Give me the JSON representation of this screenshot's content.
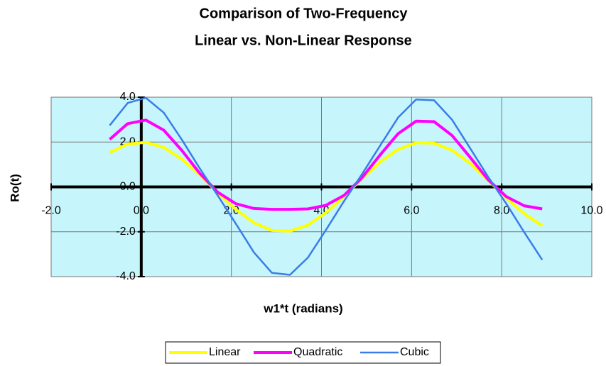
{
  "chart_data": {
    "type": "line",
    "title": [
      "Comparison of Two-Frequency",
      "Linear vs. Non-Linear Response"
    ],
    "x_label": "w1*t (radians)",
    "y_label": "Ro(t)",
    "x": [
      -0.7,
      -0.3,
      0.1,
      0.5,
      0.9,
      1.3,
      1.7,
      2.1,
      2.5,
      2.9,
      3.3,
      3.7,
      4.1,
      4.5,
      4.9,
      5.3,
      5.7,
      6.1,
      6.5,
      6.9,
      7.3,
      7.7,
      8.1,
      8.5,
      8.9
    ],
    "series": [
      {
        "name": "Linear",
        "color": "#ffff00",
        "values": [
          1.53,
          1.91,
          1.99,
          1.76,
          1.24,
          0.53,
          -0.26,
          -1.01,
          -1.6,
          -1.94,
          -1.97,
          -1.7,
          -1.15,
          -0.42,
          0.37,
          1.11,
          1.67,
          1.97,
          1.95,
          1.63,
          1.05,
          0.3,
          -0.49,
          -1.2,
          -1.73
        ]
      },
      {
        "name": "Quadratic",
        "color": "#ff00ff",
        "values": [
          2.12,
          2.82,
          2.98,
          2.53,
          1.63,
          0.6,
          -0.24,
          -0.75,
          -0.96,
          -1.0,
          -1.0,
          -0.98,
          -0.82,
          -0.38,
          0.41,
          1.42,
          2.37,
          2.93,
          2.91,
          2.29,
          1.32,
          0.32,
          -0.43,
          -0.84,
          -0.98
        ]
      },
      {
        "name": "Cubic",
        "color": "#3a7de8",
        "values": [
          2.74,
          3.74,
          3.97,
          3.31,
          2.11,
          0.82,
          -0.39,
          -1.64,
          -2.92,
          -3.83,
          -3.92,
          -3.15,
          -1.92,
          -0.64,
          0.57,
          1.83,
          3.09,
          3.9,
          3.86,
          2.99,
          1.72,
          0.45,
          -0.74,
          -2.02,
          -3.25
        ]
      }
    ],
    "xlim": [
      -2,
      10
    ],
    "xticks": [
      {
        "value": -2,
        "label": "-2.0"
      },
      {
        "value": 0,
        "label": "0.0"
      },
      {
        "value": 2,
        "label": "2.0"
      },
      {
        "value": 4,
        "label": "4.0"
      },
      {
        "value": 6,
        "label": "6.0"
      },
      {
        "value": 8,
        "label": "8.0"
      },
      {
        "value": 10,
        "label": "10.0"
      }
    ],
    "ylim": [
      -4,
      4
    ],
    "yticks": [
      {
        "value": -4,
        "label": "-4.0"
      },
      {
        "value": -2,
        "label": "-2.0"
      },
      {
        "value": 0,
        "label": "0.0"
      },
      {
        "value": 2,
        "label": "2.0"
      },
      {
        "value": 4,
        "label": "4.0"
      }
    ],
    "grid": true,
    "legend": "bottom"
  }
}
